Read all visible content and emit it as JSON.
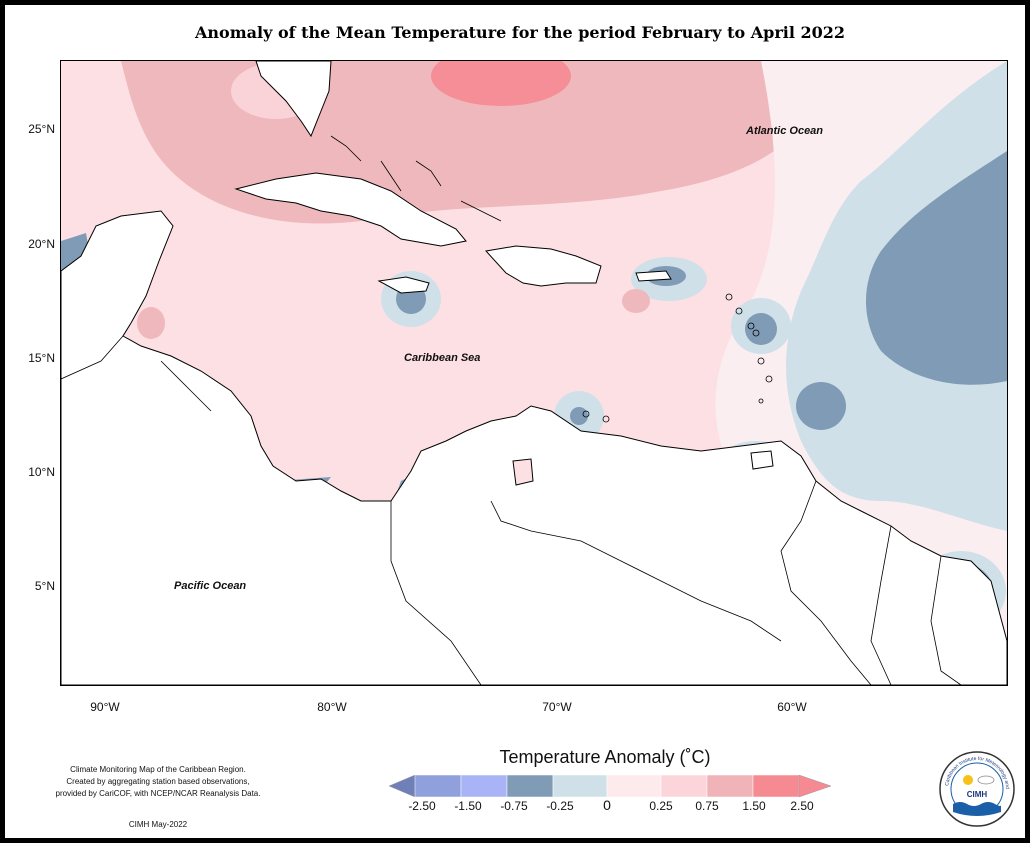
{
  "title": "Anomaly of the Mean Temperature for the period February to April 2022",
  "map": {
    "lon_range": [
      -92,
      -50
    ],
    "lat_range": [
      1,
      28
    ],
    "lat_ticks": [
      "25°N",
      "20°N",
      "15°N",
      "10°N",
      "5°N"
    ],
    "lon_ticks": [
      "90°W",
      "80°W",
      "70°W",
      "60°W"
    ],
    "labels": {
      "atlantic": "Atlantic Ocean",
      "caribbean": "Caribbean Sea",
      "pacific": "Pacific Ocean"
    }
  },
  "legend": {
    "title": "Temperature Anomaly (˚C)",
    "tick_labels": [
      "-2.50",
      "-1.50",
      "-0.75",
      "-0.25",
      "0",
      "0.25",
      "0.75",
      "1.50",
      "2.50"
    ],
    "colors": [
      "#6f7fb8",
      "#8fa0dc",
      "#a9b4f7",
      "#7f9bb5",
      "#cfe0e8",
      "#fdeaec",
      "#fcd5db",
      "#efb3b8",
      "#f58a92"
    ]
  },
  "credit": {
    "line1": "Climate Monitoring Map of the Caribbean Region.",
    "line2": "Created by aggregating station based observations,",
    "line3": "provided by CariCOF, with NCEP/NCAR Reanalysis Data.",
    "date": "CIMH May-2022"
  },
  "logo": {
    "name": "CIMH",
    "ring_text": "Caribbean Institute for Meteorology and Hydrology"
  }
}
